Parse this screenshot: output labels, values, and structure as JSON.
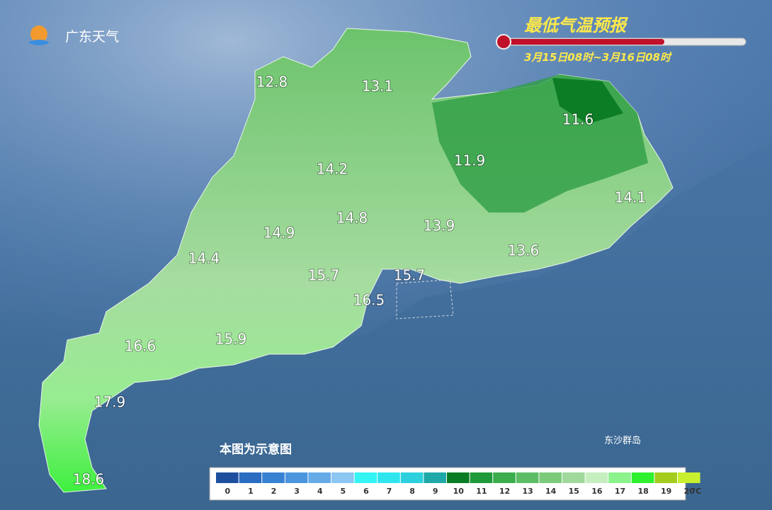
{
  "logo": {
    "text": "广东天气"
  },
  "header": {
    "title": "最低气温预报",
    "subtitle": "3月15日08时~3月16日08时"
  },
  "map": {
    "labels": [
      12.8,
      13.1,
      11.6,
      11.9,
      14.2,
      14.1,
      14.8,
      14.9,
      13.9,
      13.6,
      14.4,
      15.7,
      15.7,
      16.5,
      16.6,
      15.9,
      17.9,
      18.6
    ],
    "note": "本图为示意图",
    "island": "东沙群岛"
  },
  "legend": {
    "values": [
      0,
      1,
      2,
      3,
      4,
      5,
      6,
      7,
      8,
      9,
      10,
      11,
      12,
      13,
      14,
      15,
      16,
      17,
      18,
      19,
      20
    ],
    "unit": "℃",
    "colors": [
      "#1d4f9e",
      "#2a6cc2",
      "#3782d2",
      "#4b95de",
      "#66aae8",
      "#8cc6f2",
      "#34f4f4",
      "#30e6ee",
      "#2cd0dc",
      "#1fa8a8",
      "#0a7d24",
      "#1e9a3a",
      "#3bad4c",
      "#5dbd64",
      "#7ccb7a",
      "#a0d99b",
      "#c6efbf",
      "#8cf28c",
      "#2ef02e",
      "#a4cc1e",
      "#c8f02e"
    ]
  }
}
